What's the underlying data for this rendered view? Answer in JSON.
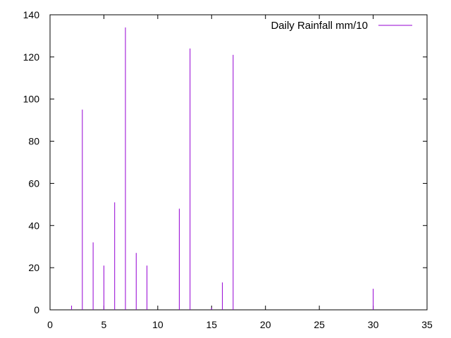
{
  "chart_data": {
    "type": "bar",
    "style": "impulses",
    "legend": {
      "label": "Daily Rainfall mm/10",
      "position": "top-right"
    },
    "color": "#9400d3",
    "grid": false,
    "xlim": [
      0,
      35
    ],
    "ylim": [
      0,
      140
    ],
    "xticks": [
      0,
      5,
      10,
      15,
      20,
      25,
      30,
      35
    ],
    "yticks": [
      0,
      20,
      40,
      60,
      80,
      100,
      120,
      140
    ],
    "x": [
      2,
      3,
      4,
      5,
      6,
      7,
      8,
      9,
      12,
      13,
      15,
      16,
      17,
      30
    ],
    "values": [
      2,
      95,
      32,
      21,
      51,
      134,
      27,
      21,
      48,
      124,
      1,
      13,
      121,
      10
    ]
  }
}
